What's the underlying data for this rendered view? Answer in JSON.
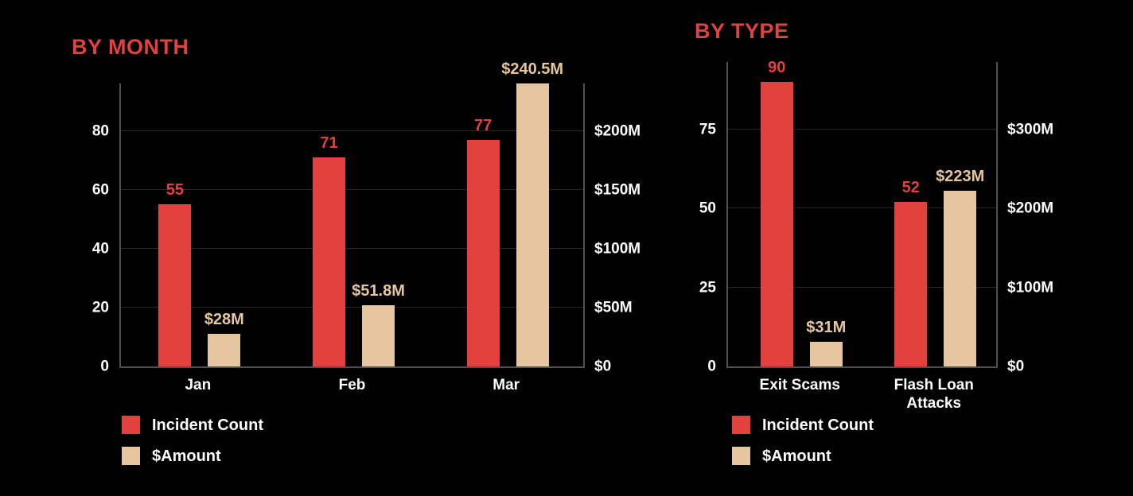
{
  "background": "#000000",
  "text_color": "#fdfdfd",
  "accent_red": "#e3413d",
  "accent_tan": "#e6c69e",
  "chart_data": [
    {
      "type": "bar",
      "title": "BY MONTH",
      "categories": [
        "Jan",
        "Feb",
        "Mar"
      ],
      "series": [
        {
          "name": "Incident Count",
          "axis": "left",
          "color": "#e3413d",
          "values": [
            55,
            71,
            77
          ],
          "value_labels": [
            "55",
            "71",
            "77"
          ]
        },
        {
          "name": "$Amount",
          "axis": "right",
          "color": "#e6c69e",
          "values": [
            28,
            51.8,
            240.5
          ],
          "value_labels": [
            "$28M",
            "$51.8M",
            "$240.5M"
          ]
        }
      ],
      "left_axis": {
        "ticks": [
          "0",
          "20",
          "40",
          "60",
          "80"
        ],
        "tick_values": [
          0,
          20,
          40,
          60,
          80
        ],
        "max": 96.2
      },
      "right_axis": {
        "ticks": [
          "$0",
          "$50M",
          "$100M",
          "$150M",
          "$200M"
        ],
        "tick_values": [
          0,
          50,
          100,
          150,
          200
        ],
        "max": 240.5
      },
      "grid": true,
      "legend_position": "bottom-left",
      "legend": [
        "Incident Count",
        "$Amount"
      ]
    },
    {
      "type": "bar",
      "title": "BY TYPE",
      "categories": [
        "Exit Scams",
        "Flash Loan Attacks"
      ],
      "series": [
        {
          "name": "Incident Count",
          "axis": "left",
          "color": "#e3413d",
          "values": [
            90,
            52
          ],
          "value_labels": [
            "90",
            "52"
          ]
        },
        {
          "name": "$Amount",
          "axis": "right",
          "color": "#e6c69e",
          "values": [
            31,
            223
          ],
          "value_labels": [
            "$31M",
            "$223M"
          ]
        }
      ],
      "left_axis": {
        "ticks": [
          "0",
          "25",
          "50",
          "75"
        ],
        "tick_values": [
          0,
          25,
          50,
          75
        ],
        "max": 96.4
      },
      "right_axis": {
        "ticks": [
          "$0",
          "$100M",
          "$200M",
          "$300M"
        ],
        "tick_values": [
          0,
          100,
          200,
          300
        ],
        "max": 385.6
      },
      "grid": true,
      "legend_position": "bottom-left",
      "legend": [
        "Incident Count",
        "$Amount"
      ]
    }
  ]
}
